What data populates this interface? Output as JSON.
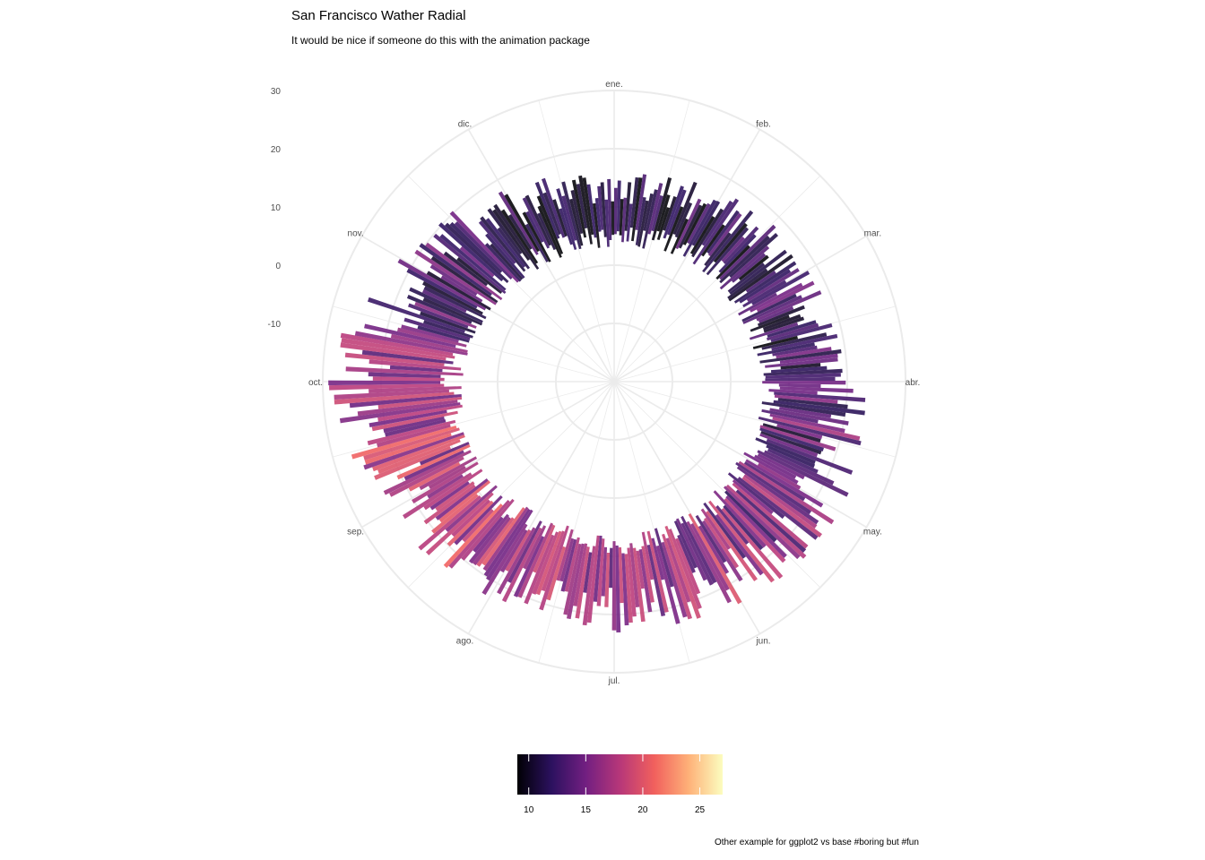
{
  "chart_data": {
    "type": "bar",
    "coord": "polar",
    "title": "San Francisco Wather Radial",
    "subtitle": "It would be nice if someone do this with the animation package",
    "caption": "Other example for ggplot2 vs base #boring but #fun",
    "radial_ticks": [
      "-10",
      "0",
      "10",
      "20",
      "30"
    ],
    "radial_range": [
      -20,
      30
    ],
    "grid": true,
    "months": [
      "ene.",
      "feb.",
      "mar.",
      "abr.",
      "may.",
      "jun.",
      "jul.",
      "ago.",
      "sep.",
      "oct.",
      "nov.",
      "dic."
    ],
    "color_scale": {
      "palette": "magma",
      "domain": [
        9,
        27
      ],
      "ticks": [
        "10",
        "15",
        "20",
        "25"
      ],
      "stops": [
        "#000004",
        "#2c115f",
        "#721f81",
        "#b73779",
        "#f1605d",
        "#feb078",
        "#fcfdbf"
      ],
      "legend_position": "bottom"
    },
    "monthly_profile": {
      "mean_temp": [
        11,
        12,
        13,
        14,
        15,
        17,
        17,
        18,
        19,
        17,
        14,
        12
      ],
      "bar_low": [
        5,
        6,
        6,
        7,
        7,
        7,
        8,
        8,
        9,
        8,
        6,
        5
      ],
      "bar_high": [
        15,
        17,
        18,
        22,
        24,
        23,
        22,
        22,
        24,
        28,
        22,
        17
      ]
    },
    "days": 365
  }
}
